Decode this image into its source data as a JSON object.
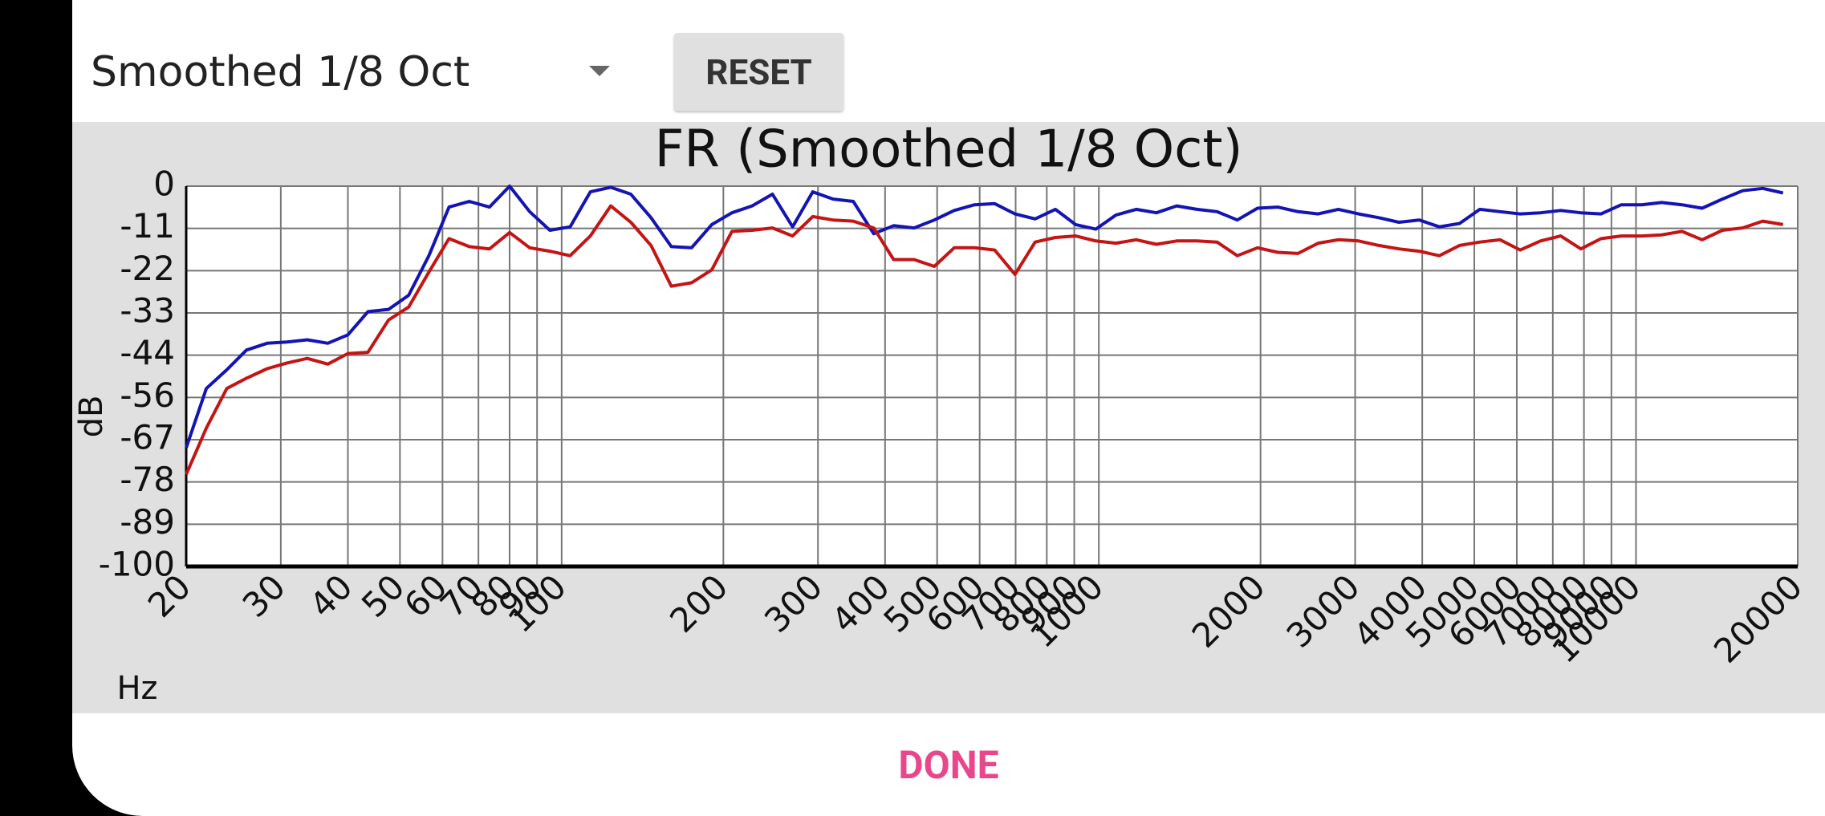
{
  "toolbar": {
    "dropdown": "Smoothed 1/8 Oct",
    "reset": "RESET"
  },
  "footer": {
    "done": "DONE"
  },
  "chart_data": {
    "type": "line",
    "title": "FR (Smoothed 1/8 Oct)",
    "x_label": "Hz",
    "y_label": "dB",
    "log_x": true,
    "grid": true,
    "xlim": [
      20,
      20000
    ],
    "ylim": [
      -100,
      0
    ],
    "xticks": [
      20,
      30,
      40,
      50,
      60,
      70,
      80,
      90,
      100,
      200,
      300,
      400,
      500,
      600,
      700,
      800,
      900,
      1000,
      2000,
      3000,
      4000,
      5000,
      6000,
      7000,
      8000,
      9000,
      10000,
      20000
    ],
    "yticks": [
      0,
      {
        "value": -11.11,
        "label": "-11"
      },
      {
        "value": -22.22,
        "label": "-22"
      },
      {
        "value": -33.33,
        "label": "-33"
      },
      {
        "value": -44.44,
        "label": "-44"
      },
      {
        "value": -55.56,
        "label": "-56"
      },
      {
        "value": -66.67,
        "label": "-67"
      },
      {
        "value": -77.78,
        "label": "-78"
      },
      {
        "value": -88.89,
        "label": "-89"
      },
      -100
    ],
    "x": [
      20,
      21.8,
      23.8,
      25.9,
      28.3,
      30.8,
      33.6,
      36.7,
      40,
      43.6,
      47.6,
      51.9,
      56.6,
      61.7,
      67.3,
      73.4,
      80,
      87.2,
      95.1,
      103.7,
      113.1,
      123.4,
      134.5,
      146.7,
      160,
      174.5,
      190.3,
      207.5,
      226.3,
      246.8,
      269.1,
      293.4,
      320,
      349,
      381,
      415,
      453,
      494,
      538,
      587,
      640,
      698,
      761,
      830,
      905,
      987,
      1076,
      1174,
      1280,
      1396,
      1522,
      1660,
      1810,
      1974,
      2153,
      2348,
      2560,
      2792,
      3044,
      3320,
      3620,
      3948,
      4305,
      4695,
      5120,
      5583,
      6089,
      6640,
      7241,
      7896,
      8611,
      9390,
      10240,
      11167,
      12177,
      13279,
      14482,
      15793,
      17222,
      18781
    ],
    "series": [
      {
        "color": "#1414b4",
        "values": [
          -68.8,
          -53.2,
          -48.3,
          -43.1,
          -41.3,
          -41.0,
          -40.4,
          -41.3,
          -39.1,
          -33.0,
          -32.4,
          -28.7,
          -18.3,
          -5.5,
          -4.0,
          -5.5,
          0,
          -6.7,
          -11.6,
          -10.7,
          -1.5,
          -0.3,
          -2.1,
          -8.3,
          -15.9,
          -16.2,
          -10.1,
          -7.0,
          -5.2,
          -2.1,
          -10.7,
          -1.5,
          -3.4,
          -4.0,
          -12.5,
          -10.4,
          -11.0,
          -8.9,
          -6.4,
          -4.9,
          -4.6,
          -7.3,
          -8.6,
          -6.1,
          -10.1,
          -11.3,
          -7.6,
          -6.1,
          -7.0,
          -5.2,
          -6.1,
          -6.7,
          -8.9,
          -5.8,
          -5.5,
          -6.7,
          -7.3,
          -6.1,
          -7.3,
          -8.3,
          -9.5,
          -8.9,
          -10.7,
          -9.8,
          -6.1,
          -6.7,
          -7.3,
          -7.0,
          -6.4,
          -7.0,
          -7.3,
          -4.9,
          -4.9,
          -4.3,
          -4.9,
          -5.8,
          -3.4,
          -1.2,
          -0.6,
          -1.8
        ]
      },
      {
        "color": "#c41414",
        "values": [
          -75.8,
          -63.6,
          -53.2,
          -50.5,
          -48.0,
          -46.5,
          -45.3,
          -46.8,
          -44.0,
          -43.7,
          -35.2,
          -31.8,
          -22.6,
          -13.8,
          -15.9,
          -16.5,
          -12.2,
          -16.2,
          -17.1,
          -18.3,
          -13.1,
          -5.2,
          -9.5,
          -15.6,
          -26.3,
          -25.4,
          -22.0,
          -11.9,
          -11.6,
          -11.0,
          -13.1,
          -8.0,
          -8.9,
          -9.2,
          -11.0,
          -19.3,
          -19.3,
          -21.1,
          -16.2,
          -16.2,
          -16.8,
          -23.2,
          -14.7,
          -13.5,
          -13.1,
          -14.4,
          -15.0,
          -14.1,
          -15.3,
          -14.4,
          -14.4,
          -14.7,
          -18.3,
          -16.2,
          -17.4,
          -17.7,
          -15.0,
          -14.1,
          -14.4,
          -15.6,
          -16.5,
          -17.1,
          -18.3,
          -15.6,
          -14.7,
          -14.1,
          -16.8,
          -14.4,
          -13.1,
          -16.5,
          -13.8,
          -13.1,
          -13.1,
          -12.8,
          -11.9,
          -14.1,
          -11.6,
          -11.0,
          -9.2,
          -10.1
        ]
      }
    ]
  }
}
